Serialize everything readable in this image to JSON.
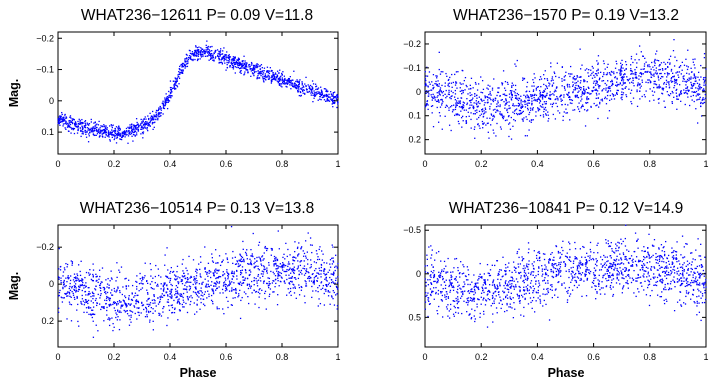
{
  "figure": {
    "marker_color": "#0000ff",
    "xlabel": "Phase",
    "ylabel": "Mag."
  },
  "chart_data": [
    {
      "type": "scatter",
      "title": "WHAT236−12611 P= 0.09 V=11.8",
      "xlabel": "",
      "ylabel": "Mag.",
      "xlim": [
        0,
        1
      ],
      "ylim": [
        -0.22,
        0.17
      ],
      "y_reversed": true,
      "xticks": [
        "0",
        "0.2",
        "0.4",
        "0.6",
        "0.8",
        "1"
      ],
      "yticks": [
        {
          "value": -0.2,
          "label": "−0.2"
        },
        {
          "value": -0.1,
          "label": "−0.1"
        },
        {
          "value": 0,
          "label": "0"
        },
        {
          "value": 0.1,
          "label": "0.1"
        }
      ],
      "series": [
        {
          "color": "#0000ff",
          "count": 1500,
          "noise": 0.012,
          "shape": [
            [
              0.0,
              0.06
            ],
            [
              0.1,
              0.09
            ],
            [
              0.22,
              0.105
            ],
            [
              0.3,
              0.085
            ],
            [
              0.36,
              0.04
            ],
            [
              0.4,
              -0.02
            ],
            [
              0.44,
              -0.1
            ],
            [
              0.48,
              -0.15
            ],
            [
              0.52,
              -0.16
            ],
            [
              0.58,
              -0.14
            ],
            [
              0.7,
              -0.1
            ],
            [
              0.85,
              -0.05
            ],
            [
              1.0,
              0.0
            ]
          ]
        }
      ]
    },
    {
      "type": "scatter",
      "title": "WHAT236−1570  P= 0.19 V=13.2",
      "xlabel": "",
      "ylabel": "",
      "xlim": [
        0,
        1
      ],
      "ylim": [
        -0.25,
        0.26
      ],
      "y_reversed": true,
      "xticks": [
        "0",
        "0.2",
        "0.4",
        "0.6",
        "0.8",
        "1"
      ],
      "yticks": [
        {
          "value": -0.2,
          "label": "−0.2"
        },
        {
          "value": -0.1,
          "label": "−0.1"
        },
        {
          "value": 0,
          "label": "0"
        },
        {
          "value": 0.1,
          "label": "0.1"
        },
        {
          "value": 0.2,
          "label": "0.2"
        }
      ],
      "series": [
        {
          "color": "#0000ff",
          "count": 1500,
          "noise": 0.055,
          "shape": [
            [
              0.0,
              0.0
            ],
            [
              0.2,
              0.06
            ],
            [
              0.3,
              0.05
            ],
            [
              0.5,
              0.0
            ],
            [
              0.7,
              -0.05
            ],
            [
              0.8,
              -0.07
            ],
            [
              0.9,
              -0.04
            ],
            [
              1.0,
              -0.01
            ]
          ]
        }
      ]
    },
    {
      "type": "scatter",
      "title": "WHAT236−10514 P= 0.13 V=13.8",
      "xlabel": "Phase",
      "ylabel": "Mag.",
      "xlim": [
        0,
        1
      ],
      "ylim": [
        -0.32,
        0.34
      ],
      "y_reversed": true,
      "xticks": [
        "0",
        "0.2",
        "0.4",
        "0.6",
        "0.8",
        "1"
      ],
      "yticks": [
        {
          "value": -0.2,
          "label": "−0.2"
        },
        {
          "value": 0,
          "label": "0"
        },
        {
          "value": 0.2,
          "label": "0.2"
        }
      ],
      "series": [
        {
          "color": "#0000ff",
          "count": 1500,
          "noise": 0.075,
          "shape": [
            [
              0.0,
              0.0
            ],
            [
              0.2,
              0.1
            ],
            [
              0.35,
              0.07
            ],
            [
              0.5,
              0.0
            ],
            [
              0.7,
              -0.07
            ],
            [
              0.85,
              -0.08
            ],
            [
              1.0,
              -0.02
            ]
          ]
        }
      ]
    },
    {
      "type": "scatter",
      "title": "WHAT236−10841 P= 0.12 V=14.9",
      "xlabel": "Phase",
      "ylabel": "",
      "xlim": [
        0,
        1
      ],
      "ylim": [
        -0.56,
        0.84
      ],
      "y_reversed": true,
      "xticks": [
        "0",
        "0.2",
        "0.4",
        "0.6",
        "0.8",
        "1"
      ],
      "yticks": [
        {
          "value": -0.5,
          "label": "−0.5"
        },
        {
          "value": 0,
          "label": "0"
        },
        {
          "value": 0.5,
          "label": "0.5"
        }
      ],
      "series": [
        {
          "color": "#0000ff",
          "count": 1500,
          "noise": 0.16,
          "shape": [
            [
              0.0,
              0.05
            ],
            [
              0.15,
              0.22
            ],
            [
              0.3,
              0.15
            ],
            [
              0.5,
              -0.05
            ],
            [
              0.7,
              -0.1
            ],
            [
              0.85,
              -0.05
            ],
            [
              1.0,
              0.05
            ]
          ]
        }
      ]
    }
  ]
}
